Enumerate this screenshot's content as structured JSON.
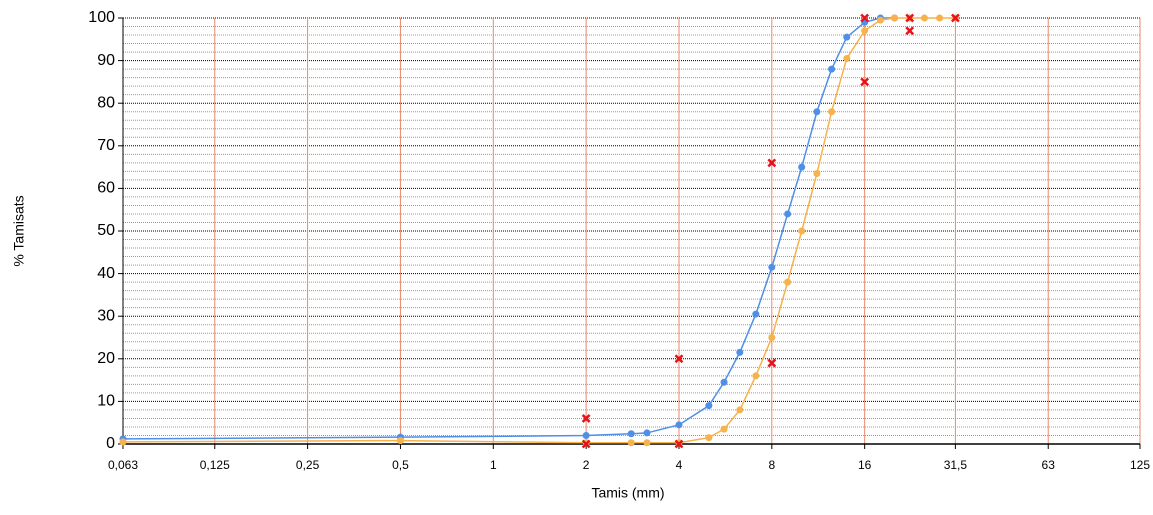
{
  "chart_data": {
    "type": "line",
    "xlabel": "Tamis (mm)",
    "ylabel": "% Tamisats",
    "xscale": "log",
    "xlim": [
      0.063,
      125
    ],
    "xticks": [
      {
        "value": 0.063,
        "label": "0,063"
      },
      {
        "value": 0.125,
        "label": "0,125"
      },
      {
        "value": 0.25,
        "label": "0,25"
      },
      {
        "value": 0.5,
        "label": "0,5"
      },
      1,
      2,
      4,
      8,
      16,
      {
        "value": 31.5,
        "label": "31,5"
      },
      63,
      125
    ],
    "ylim": [
      0,
      100
    ],
    "yticks": [
      0,
      10,
      20,
      30,
      40,
      50,
      60,
      70,
      80,
      90,
      100
    ],
    "grid": true,
    "series": [
      {
        "color": "#4f8fe8",
        "marker": "circle",
        "line": true,
        "x": [
          0.063,
          0.5,
          2,
          2.8,
          3.15,
          4,
          5,
          5.6,
          6.3,
          7.1,
          8,
          9,
          10,
          11.2,
          12.5,
          14,
          16,
          18,
          20
        ],
        "values": [
          1.2,
          1.6,
          2,
          2.4,
          2.6,
          4.5,
          9,
          14.5,
          21.5,
          30.5,
          41.5,
          54,
          65,
          78,
          88,
          95.5,
          99,
          100,
          100
        ]
      },
      {
        "color": "#f5b24d",
        "marker": "circle",
        "line": true,
        "x": [
          0.063,
          0.5,
          2,
          2.8,
          3.15,
          4,
          5,
          5.6,
          6.3,
          7.1,
          8,
          9,
          10,
          11.2,
          12.5,
          14,
          16,
          18,
          20,
          22.4,
          25,
          28,
          31.5
        ],
        "values": [
          0.5,
          0.8,
          0.3,
          0.3,
          0.3,
          0.3,
          1.5,
          3.5,
          8,
          16,
          25,
          38,
          50,
          63.5,
          78,
          90.5,
          97,
          99.5,
          100,
          100,
          100,
          100,
          100
        ]
      },
      {
        "color": "#e8121b",
        "marker": "x",
        "line": false,
        "x": [
          2,
          2,
          4,
          4,
          8,
          8,
          16,
          16,
          22.4,
          22.4,
          31.5
        ],
        "values": [
          6,
          0,
          20,
          0,
          66,
          19,
          100,
          85,
          100,
          97,
          100
        ]
      }
    ]
  }
}
